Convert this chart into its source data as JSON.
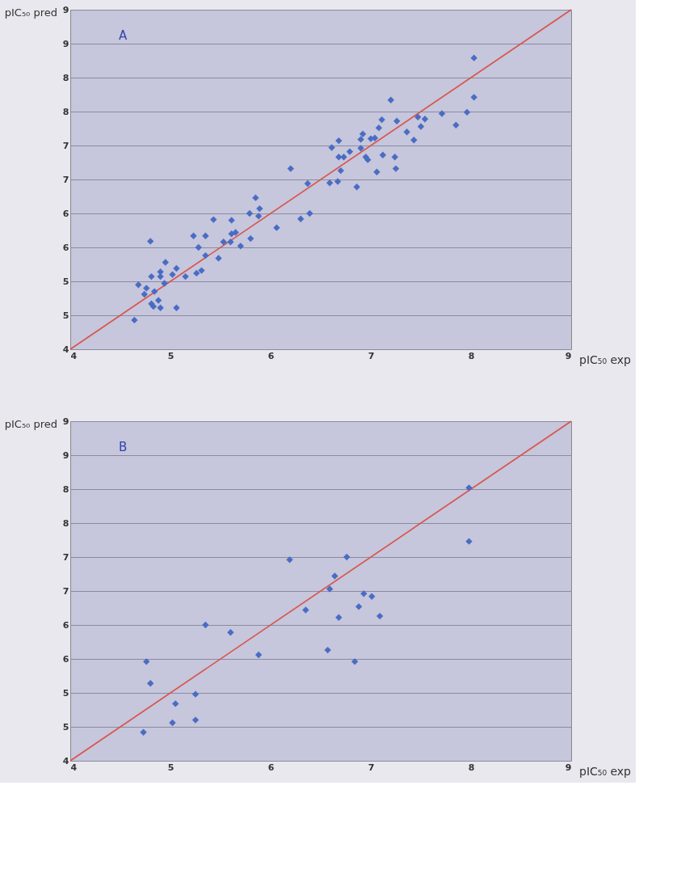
{
  "chart_data": [
    {
      "type": "scatter",
      "annotations": [
        "A"
      ],
      "xlabel": "pIC₅₀ exp",
      "ylabel": "pIC₅₀ pred",
      "xlim": [
        4,
        9
      ],
      "ylim": [
        4,
        9
      ],
      "xticks": [
        4,
        5,
        6,
        7,
        8,
        9
      ],
      "yticks": [
        4,
        {
          "value": 4.5,
          "label": "5"
        },
        5,
        {
          "value": 5.5,
          "label": "6"
        },
        6,
        {
          "value": 6.5,
          "label": "7"
        },
        7,
        {
          "value": 7.5,
          "label": "8"
        },
        8,
        {
          "value": 8.5,
          "label": "9"
        },
        9
      ],
      "grid": "y",
      "marker": "diamond",
      "series": [
        {
          "type": "line",
          "color": "#d9534a",
          "x": [
            4,
            9
          ],
          "values": [
            4,
            9
          ],
          "marker": "none"
        },
        {
          "color": "#4a6cc4",
          "x": [
            4.64,
            4.68,
            4.76,
            4.74,
            4.84,
            4.81,
            4.83,
            4.88,
            4.9,
            5.06,
            4.8,
            4.81,
            4.9,
            4.9,
            4.94,
            4.95,
            5.02,
            5.06,
            5.15,
            5.23,
            5.35,
            5.28,
            5.35,
            5.26,
            5.31,
            5.48,
            5.43,
            5.53,
            5.61,
            5.61,
            5.65,
            5.6,
            5.7,
            5.8,
            5.79,
            5.85,
            5.89,
            5.88,
            6.06,
            6.2,
            6.3,
            6.39,
            6.37,
            6.59,
            6.67,
            6.7,
            6.86,
            6.61,
            6.68,
            6.68,
            6.73,
            6.79,
            6.9,
            6.92,
            6.9,
            6.95,
            6.97,
            7.0,
            7.04,
            7.06,
            7.12,
            7.24,
            7.25,
            7.08,
            7.11,
            7.26,
            7.2,
            7.36,
            7.43,
            7.47,
            7.54,
            7.5,
            7.71,
            7.85,
            7.96,
            8.03,
            8.03
          ],
          "values": [
            4.43,
            4.95,
            4.9,
            4.81,
            4.85,
            4.67,
            4.63,
            4.72,
            4.61,
            4.61,
            5.59,
            5.07,
            5.14,
            5.07,
            4.97,
            5.28,
            5.1,
            5.19,
            5.07,
            5.67,
            5.67,
            5.5,
            5.38,
            5.12,
            5.16,
            5.34,
            5.91,
            5.58,
            5.9,
            5.7,
            5.72,
            5.58,
            5.52,
            5.63,
            6.0,
            6.23,
            6.07,
            5.96,
            5.79,
            6.66,
            5.92,
            6.0,
            6.44,
            6.45,
            6.47,
            6.63,
            6.39,
            6.97,
            7.07,
            6.83,
            6.83,
            6.91,
            6.96,
            7.17,
            7.09,
            6.83,
            6.79,
            7.1,
            7.11,
            6.61,
            6.86,
            6.83,
            6.66,
            7.26,
            7.38,
            7.36,
            7.67,
            7.2,
            7.08,
            7.42,
            7.39,
            7.28,
            7.47,
            7.3,
            7.49,
            7.71,
            8.29
          ]
        }
      ]
    },
    {
      "type": "scatter",
      "annotations": [
        "B"
      ],
      "xlabel": "pIC₅₀ exp",
      "ylabel": "pIC₅₀ pred",
      "xlim": [
        4,
        9
      ],
      "ylim": [
        4,
        9
      ],
      "xticks": [
        4,
        5,
        6,
        7,
        8,
        9
      ],
      "yticks": [
        4,
        {
          "value": 4.5,
          "label": "5"
        },
        5,
        {
          "value": 5.5,
          "label": "6"
        },
        6,
        {
          "value": 6.5,
          "label": "7"
        },
        7,
        {
          "value": 7.5,
          "label": "8"
        },
        8,
        {
          "value": 8.5,
          "label": "9"
        },
        9
      ],
      "grid": "y",
      "marker": "diamond",
      "series": [
        {
          "type": "line",
          "color": "#d9534a",
          "x": [
            4,
            9
          ],
          "values": [
            4,
            9
          ],
          "marker": "none"
        },
        {
          "color": "#4a6cc4",
          "x": [
            6.19,
            6.76,
            6.64,
            6.59,
            6.93,
            7.01,
            6.35,
            6.88,
            6.68,
            7.09,
            5.35,
            5.6,
            5.88,
            6.57,
            6.84,
            4.76,
            4.8,
            5.25,
            5.05,
            5.02,
            5.25,
            4.73,
            7.98,
            7.98
          ],
          "values": [
            6.96,
            7.0,
            6.72,
            6.53,
            6.46,
            6.42,
            6.22,
            6.27,
            6.11,
            6.13,
            6.0,
            5.89,
            5.56,
            5.63,
            5.46,
            5.46,
            5.14,
            4.98,
            4.84,
            4.56,
            4.6,
            4.42,
            8.02,
            7.23
          ]
        }
      ]
    }
  ]
}
